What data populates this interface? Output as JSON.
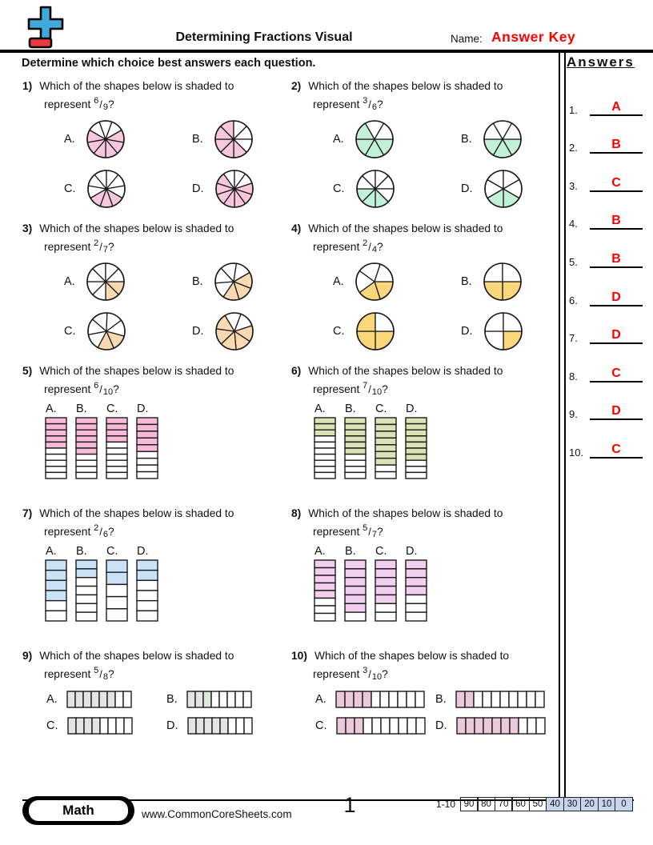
{
  "header": {
    "title": "Determining Fractions Visual",
    "name_label": "Name:",
    "name_value": "Answer Key",
    "answers_title": "Answers"
  },
  "instruction": "Determine which choice best answers each question.",
  "question_text": "Which of the shapes below is shaded to",
  "represent_word": "represent",
  "colors": {
    "answer_red": "#ff0000",
    "logo_blue": "#3fa9dc",
    "logo_red": "#e8393c",
    "stroke": "#1b1b1b",
    "score_highlight": "#c5d5ee"
  },
  "questions": [
    {
      "number": "1)",
      "numerator": "6",
      "denominator": "9",
      "layout": "pie",
      "shade": "#f8c7dd",
      "options": [
        {
          "label": "A.",
          "total": 9,
          "shaded": 6,
          "rot": 60
        },
        {
          "label": "B.",
          "total": 8,
          "shaded": 5,
          "rot": 135
        },
        {
          "label": "C.",
          "total": 9,
          "shaded": 3,
          "rot": 120
        },
        {
          "label": "D.",
          "total": 10,
          "shaded": 7,
          "rot": 72
        }
      ]
    },
    {
      "number": "2)",
      "numerator": "3",
      "denominator": "6",
      "layout": "pie",
      "shade": "#c3f1d7",
      "options": [
        {
          "label": "A.",
          "total": 6,
          "shaded": 4,
          "rot": 90
        },
        {
          "label": "B.",
          "total": 6,
          "shaded": 3,
          "rot": 90
        },
        {
          "label": "C.",
          "total": 8,
          "shaded": 3,
          "rot": 135
        },
        {
          "label": "D.",
          "total": 6,
          "shaded": 2,
          "rot": 120
        }
      ]
    },
    {
      "number": "3)",
      "numerator": "2",
      "denominator": "7",
      "layout": "pie",
      "shade": "#f9d9b2",
      "options": [
        {
          "label": "A.",
          "total": 8,
          "shaded": 2,
          "rot": 90
        },
        {
          "label": "B.",
          "total": 7,
          "shaded": 3,
          "rot": 60
        },
        {
          "label": "C.",
          "total": 7,
          "shaded": 2,
          "rot": 105
        },
        {
          "label": "D.",
          "total": 7,
          "shaded": 5,
          "rot": 72
        }
      ]
    },
    {
      "number": "4)",
      "numerator": "2",
      "denominator": "4",
      "layout": "pie",
      "shade": "#fbd77c",
      "options": [
        {
          "label": "A.",
          "total": 5,
          "shaded": 2,
          "rot": 90
        },
        {
          "label": "B.",
          "total": 4,
          "shaded": 2,
          "rot": 90
        },
        {
          "label": "C.",
          "total": 4,
          "shaded": 3,
          "rot": 90
        },
        {
          "label": "D.",
          "total": 4,
          "shaded": 1,
          "rot": 90
        }
      ]
    },
    {
      "number": "5)",
      "numerator": "6",
      "denominator": "10",
      "layout": "vbar",
      "shade": "#f9bada",
      "options": [
        {
          "label": "A.",
          "total": 10,
          "shaded": 5
        },
        {
          "label": "B.",
          "total": 10,
          "shaded": 6
        },
        {
          "label": "C.",
          "total": 10,
          "shaded": 4
        },
        {
          "label": "D.",
          "total": 9,
          "shaded": 5
        }
      ]
    },
    {
      "number": "6)",
      "numerator": "7",
      "denominator": "10",
      "layout": "vbar",
      "shade": "#dbe2b5",
      "options": [
        {
          "label": "A.",
          "total": 10,
          "shaded": 3
        },
        {
          "label": "B.",
          "total": 10,
          "shaded": 6
        },
        {
          "label": "C.",
          "total": 9,
          "shaded": 7
        },
        {
          "label": "D.",
          "total": 10,
          "shaded": 7
        }
      ]
    },
    {
      "number": "7)",
      "numerator": "2",
      "denominator": "6",
      "layout": "vbar",
      "shade": "#c9e2f8",
      "options": [
        {
          "label": "A.",
          "total": 6,
          "shaded": 4
        },
        {
          "label": "B.",
          "total": 7,
          "shaded": 2
        },
        {
          "label": "C.",
          "total": 5,
          "shaded": 2
        },
        {
          "label": "D.",
          "total": 6,
          "shaded": 2
        }
      ]
    },
    {
      "number": "8)",
      "numerator": "5",
      "denominator": "7",
      "layout": "vbar",
      "shade": "#f2cfee",
      "options": [
        {
          "label": "A.",
          "total": 8,
          "shaded": 5
        },
        {
          "label": "B.",
          "total": 7,
          "shaded": 6
        },
        {
          "label": "C.",
          "total": 7,
          "shaded": 5
        },
        {
          "label": "D.",
          "total": 7,
          "shaded": 4
        }
      ]
    },
    {
      "number": "9)",
      "numerator": "5",
      "denominator": "8",
      "layout": "hbar",
      "shade": "#e1e6e0",
      "options": [
        {
          "label": "A.",
          "total": 8,
          "shaded": 6
        },
        {
          "label": "B.",
          "total": 8,
          "shaded": 3
        },
        {
          "label": "C.",
          "total": 8,
          "shaded": 4
        },
        {
          "label": "D.",
          "total": 8,
          "shaded": 5
        }
      ]
    },
    {
      "number": "10)",
      "numerator": "3",
      "denominator": "10",
      "layout": "hbar",
      "shade": "#ebc8da",
      "options": [
        {
          "label": "A.",
          "total": 10,
          "shaded": 4
        },
        {
          "label": "B.",
          "total": 10,
          "shaded": 2
        },
        {
          "label": "C.",
          "total": 10,
          "shaded": 3
        },
        {
          "label": "D.",
          "total": 10,
          "shaded": 7
        }
      ]
    }
  ],
  "answers": [
    {
      "index": "1.",
      "value": "A"
    },
    {
      "index": "2.",
      "value": "B"
    },
    {
      "index": "3.",
      "value": "C"
    },
    {
      "index": "4.",
      "value": "B"
    },
    {
      "index": "5.",
      "value": "B"
    },
    {
      "index": "6.",
      "value": "D"
    },
    {
      "index": "7.",
      "value": "D"
    },
    {
      "index": "8.",
      "value": "C"
    },
    {
      "index": "9.",
      "value": "D"
    },
    {
      "index": "10.",
      "value": "C"
    }
  ],
  "footer": {
    "badge": "Math",
    "url": "www.CommonCoreSheets.com",
    "page": "1",
    "range_label": "1-10",
    "scores": [
      "90",
      "80",
      "70",
      "60",
      "50",
      "40",
      "30",
      "20",
      "10",
      "0"
    ],
    "highlight_from": 5
  }
}
